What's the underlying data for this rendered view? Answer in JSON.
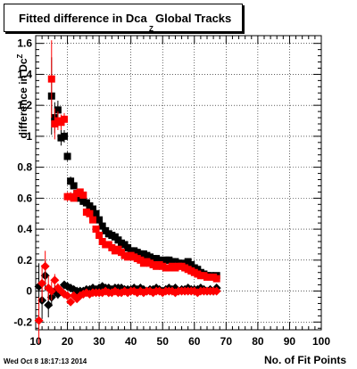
{
  "title": {
    "main": "Fitted difference in Dca",
    "subscript": "Z",
    "rest": "Global Tracks"
  },
  "axes": {
    "ylabel": "difference in Dc",
    "ylabel_sup": "Z",
    "xlabel": "No. of Fit Points"
  },
  "timestamp": "Wed Oct  8 18:17:13 2014",
  "colors": {
    "series_black": "#000000",
    "series_red": "#ff0000",
    "grid": "#000000"
  },
  "chart_data": {
    "type": "scatter",
    "xlim": [
      10,
      100
    ],
    "ylim": [
      -0.25,
      1.65
    ],
    "xticks": [
      10,
      20,
      30,
      40,
      50,
      60,
      70,
      80,
      90,
      100
    ],
    "yticks": [
      -0.2,
      0,
      0.2,
      0.4,
      0.6,
      0.8,
      1.0,
      1.2,
      1.4,
      1.6
    ],
    "ytick_labels": [
      "-0.2",
      "0",
      "0.2",
      "0.4",
      "0.6",
      "0.8",
      "1",
      "1.2",
      "1.4",
      "1.6"
    ],
    "grid": true,
    "legend": "none",
    "series": [
      {
        "color": "black",
        "marker": "square",
        "x": [
          15,
          16,
          17,
          18,
          19,
          20,
          21,
          22,
          23,
          24,
          25,
          26,
          27,
          28,
          29,
          30,
          31,
          32,
          33,
          34,
          35,
          36,
          37,
          38,
          39,
          40,
          41,
          42,
          43,
          44,
          45,
          46,
          47,
          48,
          49,
          50,
          51,
          52,
          53,
          54,
          55,
          56,
          57,
          58,
          59,
          60,
          61,
          62,
          63,
          64,
          65,
          66,
          67
        ],
        "y": [
          1.26,
          1.12,
          1.17,
          0.99,
          1.0,
          0.87,
          0.71,
          0.68,
          0.63,
          0.6,
          0.58,
          0.57,
          0.55,
          0.53,
          0.5,
          0.46,
          0.42,
          0.39,
          0.37,
          0.36,
          0.35,
          0.33,
          0.31,
          0.3,
          0.28,
          0.26,
          0.26,
          0.25,
          0.24,
          0.24,
          0.23,
          0.22,
          0.21,
          0.21,
          0.2,
          0.19,
          0.2,
          0.2,
          0.19,
          0.19,
          0.18,
          0.18,
          0.17,
          0.19,
          0.17,
          0.15,
          0.14,
          0.12,
          0.11,
          0.1,
          0.1,
          0.09,
          0.1
        ],
        "yerr": [
          0.25,
          0.1,
          0.06,
          0.05,
          0.04,
          0.03,
          0.03,
          0.02,
          0.02,
          0.02,
          0.02,
          0.02,
          0.02,
          0.02,
          0.02,
          0.01,
          0.01,
          0.01,
          0.01,
          0.01,
          0.01,
          0.01,
          0.01,
          0.01,
          0.01,
          0.01,
          0.01,
          0.01,
          0.01,
          0.01,
          0.01,
          0.01,
          0.01,
          0.01,
          0.01,
          0.01,
          0.01,
          0.01,
          0.01,
          0.01,
          0.01,
          0.01,
          0.01,
          0.01,
          0.01,
          0.01,
          0.01,
          0.01,
          0.01,
          0.01,
          0.01,
          0.01,
          0.01
        ]
      },
      {
        "color": "red",
        "marker": "square",
        "x": [
          15,
          16,
          17,
          18,
          19,
          20,
          21,
          22,
          23,
          24,
          25,
          26,
          27,
          28,
          29,
          30,
          31,
          32,
          33,
          34,
          35,
          36,
          37,
          38,
          39,
          40,
          41,
          42,
          43,
          44,
          45,
          46,
          47,
          48,
          49,
          50,
          51,
          52,
          53,
          54,
          55,
          56,
          57,
          58,
          59,
          60,
          61,
          62,
          63,
          64,
          65,
          66,
          67
        ],
        "y": [
          1.37,
          1.08,
          1.1,
          1.09,
          1.11,
          0.61,
          0.61,
          0.6,
          0.63,
          0.64,
          0.62,
          0.51,
          0.5,
          0.46,
          0.4,
          0.36,
          0.32,
          0.3,
          0.3,
          0.28,
          0.26,
          0.27,
          0.25,
          0.23,
          0.22,
          0.23,
          0.22,
          0.21,
          0.2,
          0.18,
          0.19,
          0.18,
          0.17,
          0.16,
          0.17,
          0.16,
          0.15,
          0.15,
          0.16,
          0.15,
          0.16,
          0.16,
          0.15,
          0.14,
          0.13,
          0.12,
          0.11,
          0.1,
          0.1,
          0.09,
          0.09,
          0.09,
          0.08
        ],
        "yerr": [
          0.25,
          0.1,
          0.06,
          0.05,
          0.04,
          0.03,
          0.03,
          0.02,
          0.02,
          0.02,
          0.02,
          0.02,
          0.02,
          0.02,
          0.02,
          0.01,
          0.01,
          0.01,
          0.01,
          0.01,
          0.01,
          0.01,
          0.01,
          0.01,
          0.01,
          0.01,
          0.01,
          0.01,
          0.01,
          0.01,
          0.01,
          0.01,
          0.01,
          0.01,
          0.01,
          0.01,
          0.01,
          0.01,
          0.01,
          0.01,
          0.01,
          0.01,
          0.01,
          0.01,
          0.01,
          0.01,
          0.01,
          0.01,
          0.01,
          0.01,
          0.01,
          0.01,
          0.01
        ]
      },
      {
        "color": "black",
        "marker": "diamond",
        "x": [
          11,
          12,
          13,
          14,
          15,
          16,
          17,
          18,
          19,
          20,
          21,
          22,
          23,
          24,
          25,
          26,
          27,
          28,
          29,
          30,
          31,
          32,
          33,
          34,
          35,
          36,
          37,
          38,
          39,
          40,
          41,
          42,
          43,
          44,
          45,
          46,
          47,
          48,
          49,
          50,
          51,
          52,
          53,
          54,
          55,
          56,
          57,
          58,
          59,
          60,
          61,
          62,
          63,
          64,
          65,
          66,
          67
        ],
        "y": [
          0.03,
          -0.06,
          0.1,
          -0.09,
          -0.04,
          0.0,
          -0.02,
          0.0,
          0.04,
          0.03,
          0.02,
          0.01,
          0.0,
          0.0,
          0.0,
          0.01,
          0.01,
          0.02,
          0.01,
          0.02,
          0.03,
          0.02,
          0.02,
          0.01,
          0.02,
          0.02,
          0.02,
          0.01,
          0.01,
          0.01,
          0.02,
          0.01,
          0.02,
          0.01,
          0.0,
          0.01,
          0.01,
          0.02,
          0.01,
          0.0,
          0.01,
          0.02,
          0.01,
          0.02,
          0.0,
          0.01,
          0.01,
          0.02,
          0.01,
          0.01,
          0.01,
          0.02,
          0.01,
          0.0,
          0.01,
          0.0,
          0.02
        ],
        "yerr": [
          0.15,
          0.12,
          0.1,
          0.08,
          0.06,
          0.04,
          0.03,
          0.03,
          0.02,
          0.02,
          0.02,
          0.02,
          0.02,
          0.01,
          0.01,
          0.01,
          0.01,
          0.01,
          0.01,
          0.01,
          0.01,
          0.01,
          0.01,
          0.01,
          0.01,
          0.01,
          0.01,
          0.01,
          0.01,
          0.01,
          0.01,
          0.01,
          0.01,
          0.01,
          0.01,
          0.01,
          0.01,
          0.01,
          0.01,
          0.01,
          0.01,
          0.01,
          0.01,
          0.01,
          0.01,
          0.01,
          0.01,
          0.01,
          0.01,
          0.01,
          0.01,
          0.01,
          0.01,
          0.01,
          0.01,
          0.01,
          0.01
        ]
      },
      {
        "color": "red",
        "marker": "diamond",
        "x": [
          11,
          12,
          13,
          14,
          15,
          16,
          17,
          18,
          19,
          20,
          21,
          22,
          23,
          24,
          25,
          26,
          27,
          28,
          29,
          30,
          31,
          32,
          33,
          34,
          35,
          36,
          37,
          38,
          39,
          40,
          41,
          42,
          43,
          44,
          45,
          46,
          47,
          48,
          49,
          50,
          51,
          52,
          53,
          54,
          55,
          56,
          57,
          58,
          59,
          60,
          61,
          62,
          63,
          64,
          65,
          66,
          67
        ],
        "y": [
          -0.19,
          0.05,
          0.16,
          0.02,
          0.0,
          0.07,
          0.02,
          0.0,
          -0.02,
          -0.03,
          -0.07,
          -0.03,
          -0.05,
          -0.03,
          -0.02,
          -0.01,
          -0.02,
          -0.01,
          -0.01,
          -0.01,
          -0.01,
          0.0,
          -0.01,
          -0.01,
          0.0,
          -0.01,
          -0.01,
          0.0,
          -0.01,
          0.0,
          0.0,
          -0.01,
          0.0,
          -0.01,
          0.0,
          0.0,
          -0.01,
          0.0,
          0.0,
          -0.01,
          0.0,
          0.0,
          0.0,
          -0.01,
          0.0,
          0.0,
          0.0,
          0.0,
          0.0,
          0.0,
          -0.01,
          0.0,
          0.0,
          0.0,
          0.0,
          0.0,
          0.0
        ],
        "yerr": [
          0.15,
          0.12,
          0.1,
          0.08,
          0.06,
          0.04,
          0.03,
          0.03,
          0.02,
          0.02,
          0.02,
          0.02,
          0.02,
          0.01,
          0.01,
          0.01,
          0.01,
          0.01,
          0.01,
          0.01,
          0.01,
          0.01,
          0.01,
          0.01,
          0.01,
          0.01,
          0.01,
          0.01,
          0.01,
          0.01,
          0.01,
          0.01,
          0.01,
          0.01,
          0.01,
          0.01,
          0.01,
          0.01,
          0.01,
          0.01,
          0.01,
          0.01,
          0.01,
          0.01,
          0.01,
          0.01,
          0.01,
          0.01,
          0.01,
          0.01,
          0.01,
          0.01,
          0.01,
          0.01,
          0.01,
          0.01,
          0.01
        ]
      }
    ]
  }
}
